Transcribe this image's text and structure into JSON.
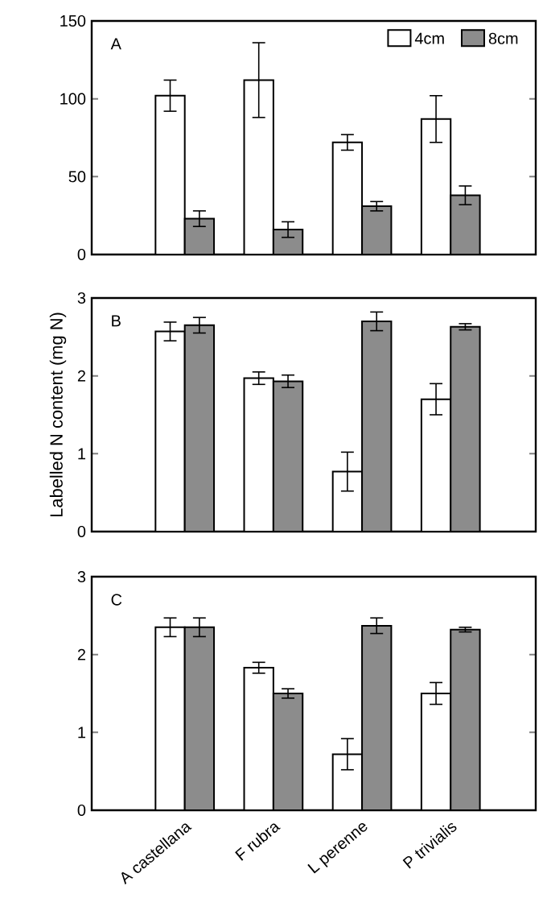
{
  "chart_data": [
    {
      "type": "bar",
      "categories": [
        null,
        null,
        null,
        null
      ],
      "series": [
        {
          "name": "4cm",
          "color": "#ffffff",
          "values": [
            102,
            112,
            72,
            87
          ],
          "errors": [
            10,
            24,
            5,
            15
          ]
        },
        {
          "name": "8cm",
          "color": "#8c8c8c",
          "values": [
            23,
            16,
            31,
            38
          ],
          "errors": [
            5,
            5,
            3,
            6
          ]
        }
      ],
      "ylim": [
        0,
        150
      ],
      "yticks": [
        0,
        50,
        100,
        150
      ],
      "legend": "top right",
      "tick_labels": "y",
      "annotations": [
        "A"
      ]
    },
    {
      "type": "bar",
      "categories": [
        null,
        null,
        null,
        null
      ],
      "series": [
        {
          "color": "#ffffff",
          "values": [
            2.57,
            1.97,
            0.77,
            1.7
          ],
          "errors": [
            0.12,
            0.08,
            0.25,
            0.2
          ]
        },
        {
          "color": "#8c8c8c",
          "values": [
            2.65,
            1.93,
            2.7,
            2.63
          ],
          "errors": [
            0.1,
            0.08,
            0.12,
            0.04
          ]
        }
      ],
      "ylim": [
        0,
        3
      ],
      "yticks": [
        0,
        1,
        2,
        3
      ],
      "ylabel": "Labelled N content (mg N)",
      "tick_labels": "y",
      "annotations": [
        "B"
      ]
    },
    {
      "type": "bar",
      "categories": [
        "A castellana",
        "F rubra",
        "L perenne",
        "P trivialis"
      ],
      "series": [
        {
          "color": "#ffffff",
          "values": [
            2.35,
            1.83,
            0.72,
            1.5
          ],
          "errors": [
            0.12,
            0.07,
            0.2,
            0.14
          ]
        },
        {
          "color": "#8c8c8c",
          "values": [
            2.35,
            1.5,
            2.37,
            2.32
          ],
          "errors": [
            0.12,
            0.06,
            0.1,
            0.03
          ]
        }
      ],
      "ylim": [
        0,
        3
      ],
      "yticks": [
        0,
        1,
        2,
        3
      ],
      "annotations": [
        "C"
      ]
    }
  ]
}
